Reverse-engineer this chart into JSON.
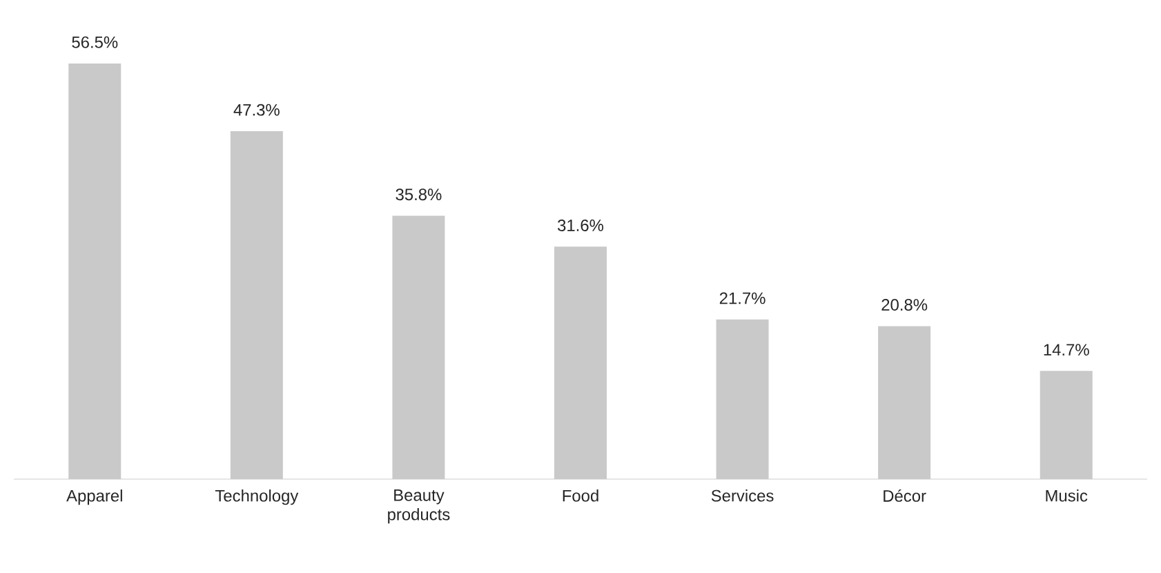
{
  "chart_data": {
    "type": "bar",
    "categories": [
      "Apparel",
      "Technology",
      "Beauty products",
      "Food",
      "Services",
      "Décor",
      "Music"
    ],
    "values": [
      56.5,
      47.3,
      35.8,
      31.6,
      21.7,
      20.8,
      14.7
    ],
    "value_labels": [
      "56.5%",
      "47.3%",
      "35.8%",
      "31.6%",
      "21.7%",
      "20.8%",
      "14.7%"
    ],
    "color": "#c9c9c9"
  }
}
